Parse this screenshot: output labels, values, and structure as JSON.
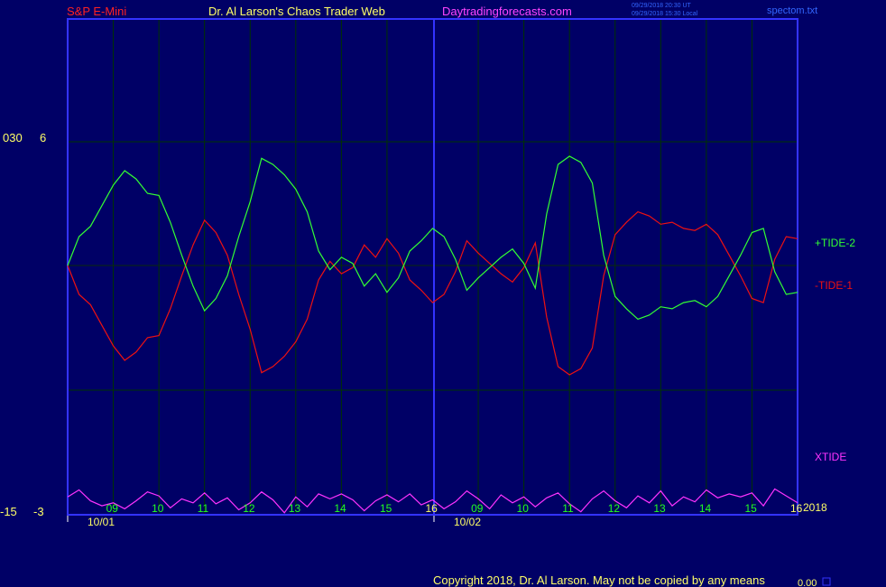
{
  "header": {
    "symbol": "S&P E-Mini",
    "site_title": "Dr. Al Larson's Chaos Trader Web",
    "site_url": "Daytradingforecasts.com",
    "time_utc": "09/29/2018 20:30 UT",
    "time_local": "09/29/2018 15:30 Local",
    "filename": "spectom.txt"
  },
  "footer": {
    "copyright": "Copyright 2018, Dr. Al Larson. May not be copied by any means",
    "corner_value": "0.00"
  },
  "axis": {
    "left_top_outer": "030",
    "left_top_inner": "6",
    "left_bottom_outer": "-15",
    "left_bottom_inner": "-3",
    "year_label": "2018"
  },
  "colors": {
    "background": "#000066",
    "frame": "#3333ff",
    "grid": "#003300",
    "tide_plus": "#33ff33",
    "tide_minus": "#ee1111",
    "xtide": "#ff33ff",
    "tick_label": "#22ff22",
    "yellow": "#ffff66",
    "header_red": "#ff2222",
    "header_magenta": "#ff44ff"
  },
  "chart_data": {
    "type": "line",
    "xlabel": "",
    "ylabel": "",
    "date_labels": [
      "10/01",
      "10/02"
    ],
    "hour_labels": [
      "09",
      "10",
      "11",
      "12",
      "13",
      "14",
      "15",
      "16",
      "09",
      "10",
      "11",
      "12",
      "13",
      "14",
      "15",
      "16"
    ],
    "upper_ylim": [
      -3,
      6
    ],
    "series": [
      {
        "name": "+TIDE-2",
        "x": [
          0,
          0.25,
          0.5,
          0.75,
          1.0,
          1.25,
          1.5,
          1.75,
          2.0,
          2.25,
          2.5,
          2.75,
          3.0,
          3.25,
          3.5,
          3.75,
          4.0,
          4.25,
          4.5,
          4.75,
          5.0,
          5.25,
          5.5,
          5.75,
          6.0,
          6.25,
          6.5,
          6.75,
          7.0,
          7.25,
          7.5,
          7.75,
          8.0,
          8.25,
          8.5,
          8.75,
          9.0,
          9.25,
          9.5,
          9.75,
          10.0,
          10.25,
          10.5,
          10.75,
          11.0,
          11.25,
          11.5,
          11.75,
          12.0,
          12.25,
          12.5,
          12.75,
          13.0,
          13.25,
          13.5,
          13.75,
          14.0,
          14.25,
          14.5,
          14.75,
          15.0,
          15.25,
          15.5,
          15.75,
          16.0
        ],
        "y": [
          0,
          1.4,
          1.9,
          2.9,
          3.9,
          4.6,
          4.2,
          3.5,
          3.4,
          2.1,
          0.5,
          -1.0,
          -2.2,
          -1.6,
          -0.5,
          1.4,
          3.1,
          5.2,
          4.9,
          4.4,
          3.7,
          2.6,
          0.7,
          -0.2,
          0.4,
          0.1,
          -1.0,
          -0.4,
          -1.3,
          -0.6,
          0.7,
          1.2,
          1.8,
          1.4,
          0.3,
          -1.2,
          -0.6,
          -0.1,
          0.4,
          0.8,
          0.1,
          -1.1,
          2.5,
          4.9,
          5.3,
          5.0,
          4.0,
          0.5,
          -1.5,
          -2.1,
          -2.6,
          -2.4,
          -2.0,
          -2.1,
          -1.8,
          -1.7,
          -2.0,
          -1.5,
          -0.5,
          0.5,
          1.6,
          1.8,
          -0.3,
          -1.4,
          -1.3
        ]
      },
      {
        "name": "-TIDE-1",
        "x": [
          0,
          0.25,
          0.5,
          0.75,
          1.0,
          1.25,
          1.5,
          1.75,
          2.0,
          2.25,
          2.5,
          2.75,
          3.0,
          3.25,
          3.5,
          3.75,
          4.0,
          4.25,
          4.5,
          4.75,
          5.0,
          5.25,
          5.5,
          5.75,
          6.0,
          6.25,
          6.5,
          6.75,
          7.0,
          7.25,
          7.5,
          7.75,
          8.0,
          8.25,
          8.5,
          8.75,
          9.0,
          9.25,
          9.5,
          9.75,
          10.0,
          10.25,
          10.5,
          10.75,
          11.0,
          11.25,
          11.5,
          11.75,
          12.0,
          12.25,
          12.5,
          12.75,
          13.0,
          13.25,
          13.5,
          13.75,
          14.0,
          14.25,
          14.5,
          14.75,
          15.0,
          15.25,
          15.5,
          15.75,
          16.0
        ],
        "y": [
          0,
          -1.4,
          -1.9,
          -2.9,
          -3.9,
          -4.6,
          -4.2,
          -3.5,
          -3.4,
          -2.1,
          -0.5,
          1.0,
          2.2,
          1.6,
          0.5,
          -1.4,
          -3.1,
          -5.2,
          -4.9,
          -4.4,
          -3.7,
          -2.6,
          -0.7,
          0.2,
          -0.4,
          -0.1,
          1.0,
          0.4,
          1.3,
          0.6,
          -0.7,
          -1.2,
          -1.8,
          -1.4,
          -0.3,
          1.2,
          0.6,
          0.1,
          -0.4,
          -0.8,
          -0.1,
          1.1,
          -2.5,
          -4.9,
          -5.3,
          -5.0,
          -4.0,
          -0.5,
          1.5,
          2.1,
          2.6,
          2.4,
          2.0,
          2.1,
          1.8,
          1.7,
          2.0,
          1.5,
          0.5,
          -0.5,
          -1.6,
          -1.8,
          0.3,
          1.4,
          1.3
        ]
      },
      {
        "name": "XTIDE",
        "x": [
          0,
          0.25,
          0.5,
          0.75,
          1.0,
          1.25,
          1.5,
          1.75,
          2.0,
          2.25,
          2.5,
          2.75,
          3.0,
          3.25,
          3.5,
          3.75,
          4.0,
          4.25,
          4.5,
          4.75,
          5.0,
          5.25,
          5.5,
          5.75,
          6.0,
          6.25,
          6.5,
          6.75,
          7.0,
          7.25,
          7.5,
          7.75,
          8.0,
          8.25,
          8.5,
          8.75,
          9.0,
          9.25,
          9.5,
          9.75,
          10.0,
          10.25,
          10.5,
          10.75,
          11.0,
          11.25,
          11.5,
          11.75,
          12.0,
          12.25,
          12.5,
          12.75,
          13.0,
          13.25,
          13.5,
          13.75,
          14.0,
          14.25,
          14.5,
          14.75,
          15.0,
          15.25,
          15.5,
          15.75,
          16.0
        ],
        "y": [
          -9.0,
          -12.5,
          -7.0,
          -4.5,
          -6.0,
          -3.0,
          -7.0,
          -11.5,
          -9.5,
          -3.5,
          -8.0,
          -6.0,
          -11.0,
          -5.5,
          -8.5,
          -2.5,
          -6.0,
          -11.5,
          -7.5,
          -1.0,
          -9.0,
          -4.0,
          -10.5,
          -8.0,
          -10.5,
          -7.5,
          -2.0,
          -7.0,
          -10.0,
          -6.5,
          -10.5,
          -5.0,
          -7.5,
          -3.0,
          -6.5,
          -12.0,
          -8.0,
          -3.0,
          -10.0,
          -6.0,
          -9.0,
          -4.0,
          -8.5,
          -11.0,
          -5.5,
          -1.5,
          -8.0,
          -12.0,
          -7.0,
          -3.5,
          -9.5,
          -6.0,
          -12.0,
          -4.5,
          -9.0,
          -6.5,
          -12.5,
          -8.5,
          -10.5,
          -9.0,
          -11.0,
          -4.5,
          -13.0,
          -9.5,
          -6.0
        ]
      }
    ]
  }
}
